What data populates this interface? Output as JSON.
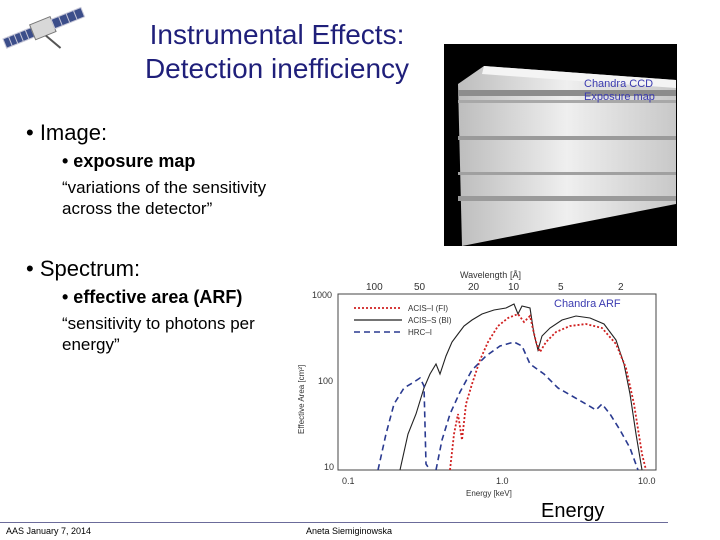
{
  "title": {
    "line1": "Instrumental Effects:",
    "line2": "Detection inefficiency"
  },
  "image_section": {
    "bullet": "• Image:",
    "sub_bullet": "• exposure map",
    "quote_line1": "“variations of the sensitivity",
    "quote_line2": "across the detector”"
  },
  "spectrum_section": {
    "bullet": "• Spectrum:",
    "sub_bullet": "• effective area (ARF)",
    "quote_line1": "“sensitivity to photons per",
    "quote_line2": "energy”"
  },
  "exposure_map": {
    "caption_line1": "Chandra CCD",
    "caption_line2": "Exposure map"
  },
  "arf_plot": {
    "caption": "Chandra ARF",
    "top_axis_label": "Wavelength",
    "top_axis_unit": "[Å]",
    "top_ticks": [
      "100",
      "50",
      "20",
      "10",
      "5",
      "2"
    ],
    "y_ticks": [
      "1000",
      "100",
      "10"
    ],
    "x_ticks": [
      "0.1",
      "1.0",
      "10.0"
    ],
    "xlabel": "Energy [keV]",
    "ylabel": "Effective Area [cm²]",
    "legend": [
      "ACIS–I (FI)",
      "ACIS–S (BI)",
      "HRC–I"
    ]
  },
  "energy_label": "Energy",
  "footer": {
    "left": "AAS January 7, 2014",
    "center": "Aneta Siemiginowska"
  }
}
